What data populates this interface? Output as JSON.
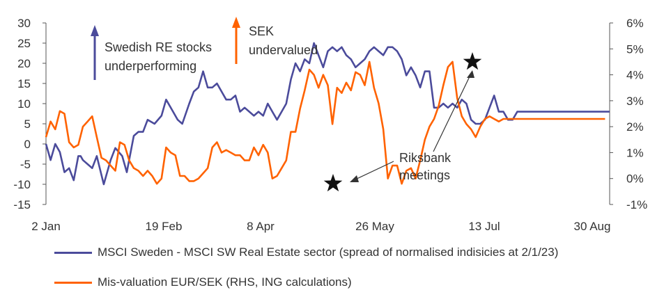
{
  "chart_data": {
    "type": "line",
    "x_ticks": [
      "2 Jan",
      "19 Feb",
      "8 Apr",
      "26 May",
      "13 Jul",
      "30 Aug"
    ],
    "left_axis": {
      "ticks": [
        "30",
        "25",
        "20",
        "15",
        "10",
        "5",
        "0",
        "-5",
        "-10",
        "-15"
      ],
      "ylim": [
        -15,
        30
      ]
    },
    "right_axis": {
      "ticks": [
        "6%",
        "5%",
        "4%",
        "3%",
        "2%",
        "1%",
        "0%",
        "-1%"
      ],
      "ylim": [
        -1,
        6
      ]
    },
    "series": [
      {
        "name": "MSCI Sweden - MSCI SW Real Estate sector (spread of normalised indisicies at 2/1/23)",
        "axis": "left",
        "color": "#4b4b9b",
        "x_days": [
          0,
          2,
          4,
          5,
          6,
          8,
          10,
          12,
          14,
          15,
          16,
          18,
          20,
          22,
          25,
          28,
          30,
          33,
          35,
          38,
          40,
          42,
          44,
          47,
          50,
          52,
          55,
          57,
          59,
          62,
          64,
          66,
          68,
          70,
          72,
          74,
          76,
          78,
          80,
          82,
          84,
          86,
          88,
          90,
          92,
          94,
          96,
          98,
          100,
          102,
          104,
          106,
          108,
          110,
          112,
          114,
          116,
          118,
          120,
          122,
          124,
          126,
          128,
          130,
          132,
          134,
          136,
          138,
          140,
          142,
          144,
          146,
          148,
          150,
          152,
          154,
          156,
          158,
          160,
          162,
          164,
          166,
          168,
          170,
          172,
          174,
          176,
          178,
          180,
          182,
          184,
          186,
          188,
          190,
          192,
          194,
          196,
          198,
          200,
          202,
          204,
          206,
          208,
          210,
          212,
          214,
          216,
          218,
          220,
          222,
          224,
          226,
          228,
          230,
          232,
          234,
          236,
          238,
          240,
          242,
          244
        ],
        "values": [
          0,
          -4,
          0,
          -1,
          -2,
          -7,
          -6,
          -9,
          -3,
          -3,
          -4,
          -5,
          -6,
          -3,
          -10,
          -4,
          -1,
          -3,
          -7,
          2,
          3,
          3,
          6,
          5,
          7,
          11,
          8,
          6,
          5,
          10,
          13,
          14,
          18,
          14,
          14,
          15,
          13,
          11,
          11,
          12,
          8,
          9,
          8,
          7,
          8,
          7,
          10,
          8,
          6,
          8,
          10,
          16,
          20,
          18,
          21,
          20,
          25,
          22,
          19,
          23,
          24,
          23,
          24,
          22,
          21,
          19,
          20,
          21,
          23,
          24,
          23,
          22,
          24,
          24,
          23,
          21,
          17,
          19,
          17,
          14,
          18,
          18,
          9,
          9,
          10,
          9,
          10,
          9,
          11,
          10,
          6,
          5,
          5,
          6,
          9,
          12,
          8,
          8,
          6,
          6,
          8,
          8,
          8,
          8,
          8,
          8,
          8,
          8,
          8,
          8,
          8,
          8,
          8,
          8,
          8,
          8,
          8,
          8,
          8,
          8,
          8
        ]
      },
      {
        "name": "Mis-valuation EUR/SEK (RHS, ING calculations)",
        "axis": "right",
        "color": "#ff6200",
        "x_days": [
          0,
          2,
          4,
          6,
          8,
          10,
          12,
          14,
          16,
          18,
          20,
          22,
          24,
          26,
          28,
          30,
          32,
          34,
          36,
          38,
          40,
          42,
          44,
          46,
          48,
          50,
          52,
          54,
          56,
          58,
          60,
          62,
          64,
          66,
          68,
          70,
          72,
          74,
          76,
          78,
          80,
          82,
          84,
          86,
          88,
          90,
          92,
          94,
          96,
          98,
          100,
          102,
          104,
          106,
          108,
          110,
          112,
          114,
          116,
          118,
          120,
          122,
          124,
          126,
          128,
          130,
          132,
          134,
          136,
          138,
          140,
          142,
          144,
          146,
          148,
          150,
          152,
          154,
          156,
          158,
          160,
          162,
          164,
          166,
          168,
          170,
          172,
          174,
          176,
          178,
          180,
          182,
          184,
          186,
          188,
          190,
          192,
          194,
          196,
          198,
          200,
          202,
          204,
          206,
          208,
          210,
          212,
          214,
          216,
          218,
          220,
          222,
          224,
          226,
          228,
          230,
          232,
          234,
          236,
          238,
          240,
          242
        ],
        "values": [
          1.6,
          2.2,
          1.9,
          2.6,
          2.5,
          1.4,
          1.2,
          1.3,
          2.0,
          2.2,
          2.4,
          1.6,
          0.8,
          0.7,
          0.5,
          0.3,
          1.4,
          1.3,
          0.7,
          0.4,
          0.3,
          0.1,
          0.3,
          0.1,
          -0.2,
          0.0,
          1.2,
          1.0,
          0.9,
          0.1,
          0.1,
          -0.1,
          -0.1,
          0.0,
          0.2,
          0.4,
          1.2,
          1.4,
          1.0,
          1.1,
          1.0,
          0.9,
          0.9,
          0.7,
          0.7,
          1.2,
          0.9,
          1.3,
          1.0,
          0.0,
          0.1,
          0.4,
          0.7,
          1.8,
          1.8,
          2.7,
          3.4,
          4.2,
          4.0,
          3.5,
          4.0,
          3.6,
          2.1,
          3.5,
          3.3,
          3.7,
          3.4,
          4.1,
          4.0,
          3.6,
          4.5,
          3.5,
          2.9,
          1.9,
          0.0,
          0.5,
          0.5,
          -0.2,
          0.3,
          0.4,
          0.0,
          0.7,
          1.5,
          2.0,
          2.3,
          2.8,
          3.6,
          4.3,
          4.5,
          3.1,
          2.4,
          2.1,
          1.9,
          1.6,
          2.0,
          2.3,
          2.4,
          2.3,
          2.2,
          2.3,
          2.3,
          2.3,
          2.3,
          2.3,
          2.3,
          2.3,
          2.3,
          2.3,
          2.3,
          2.3,
          2.3,
          2.3,
          2.3,
          2.3,
          2.3,
          2.3,
          2.3,
          2.3,
          2.3,
          2.3,
          2.3,
          2.3
        ]
      }
    ],
    "annotations": {
      "re_stocks": [
        "Swedish RE stocks",
        "underperforming"
      ],
      "sek": [
        "SEK",
        "undervalued"
      ],
      "riksbank": [
        "Riksbank",
        "meetings"
      ]
    },
    "arrow_colors": {
      "re_stocks": "#4b4b9b",
      "sek": "#ff6200"
    },
    "grid": false,
    "legend_position": "bottom"
  }
}
